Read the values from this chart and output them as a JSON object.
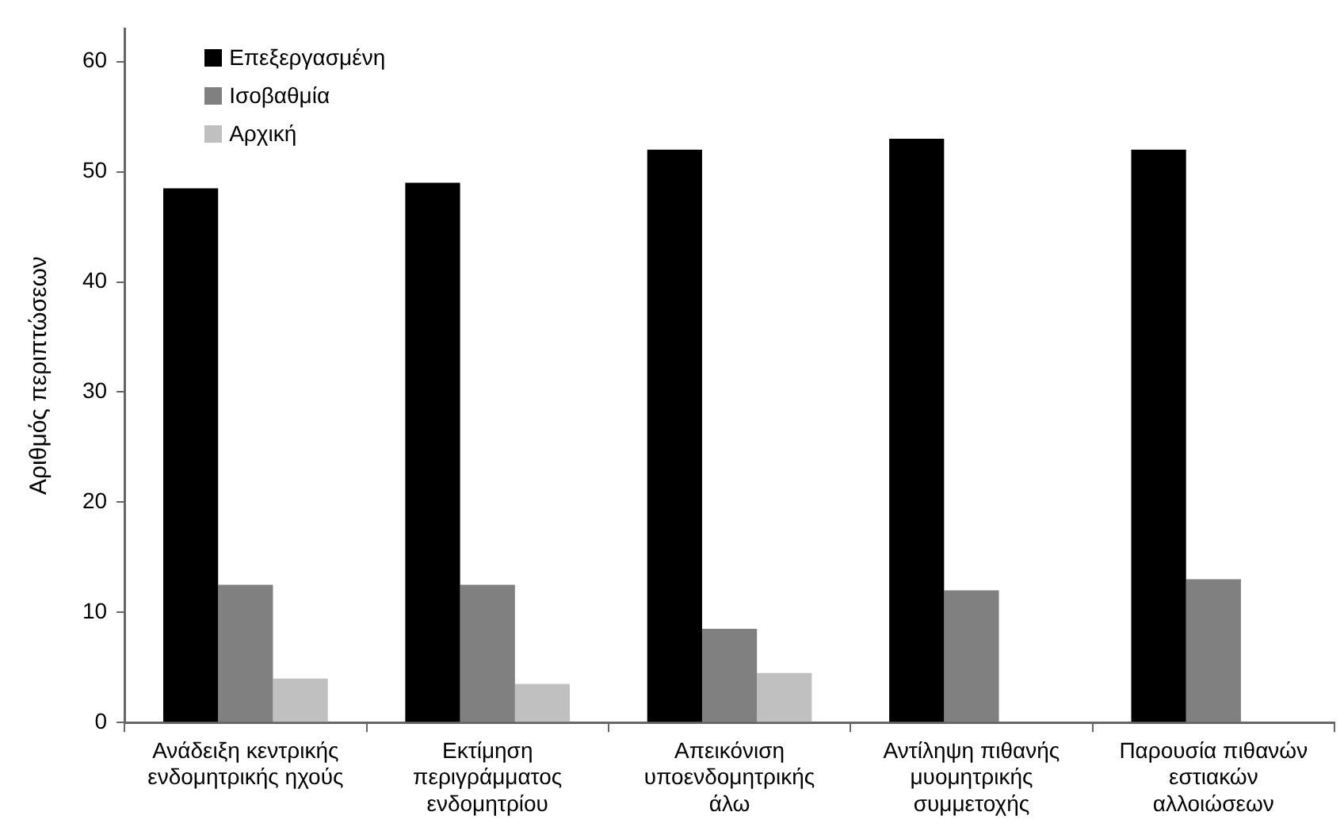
{
  "chart_data": {
    "type": "bar",
    "ylabel": "Αριθμός περιπτώσεων",
    "categories": [
      "Ανάδειξη κεντρικής ενδομητρικής ηχούς",
      "Εκτίμηση περιγράμματος ενδομητρίου",
      "Απεικόνιση υποενδομητρικής άλω",
      "Αντίληψη πιθανής μυομητρικής συμμετοχής",
      "Παρουσία πιθανών εστιακών αλλοιώσεων"
    ],
    "series": [
      {
        "name": "Επεξεργασμένη",
        "color": "#000000",
        "values": [
          48.5,
          49,
          52,
          53,
          52
        ]
      },
      {
        "name": "Ισοβαθμία",
        "color": "#808080",
        "values": [
          12.5,
          12.5,
          8.5,
          12,
          13
        ]
      },
      {
        "name": "Αρχική",
        "color": "#c0c0c0",
        "values": [
          4,
          3.5,
          4.5,
          null,
          null
        ]
      }
    ],
    "ylim": [
      0,
      63
    ],
    "yticks": [
      0,
      10,
      20,
      30,
      40,
      50,
      60
    ],
    "legend": "top left"
  }
}
